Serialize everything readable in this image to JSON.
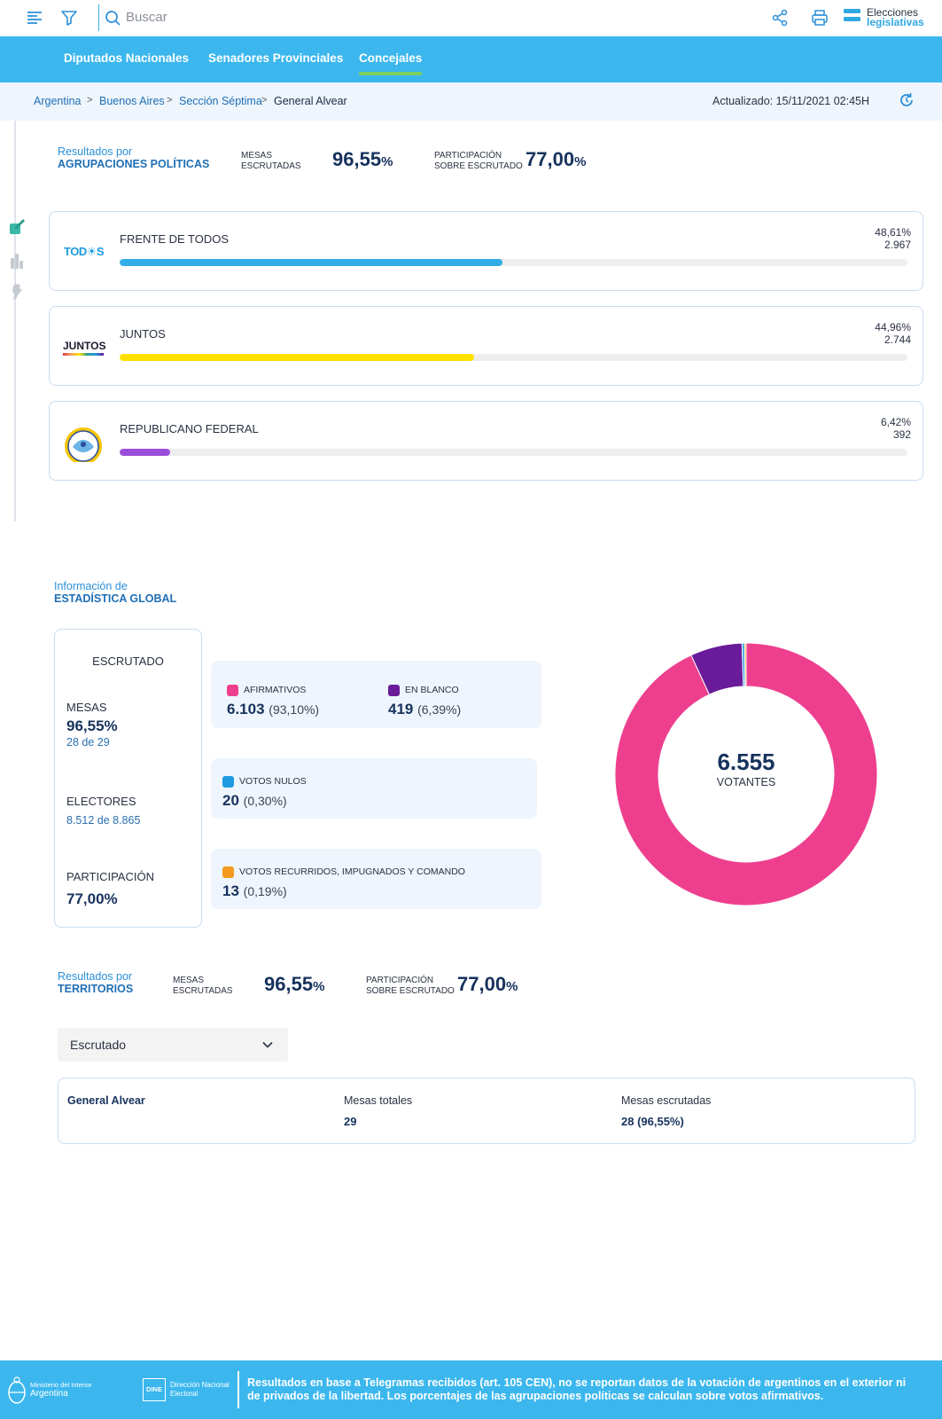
{
  "header": {
    "search_placeholder": "Buscar",
    "brand_line1": "Elecciones",
    "brand_line2": "legislativas",
    "accent": "#3bb7ee"
  },
  "nav": {
    "tabs": [
      "Diputados Nacionales",
      "Senadores Provinciales",
      "Concejales"
    ],
    "active": "Concejales"
  },
  "breadcrumb": {
    "items": [
      "Argentina",
      "Buenos Aires",
      "Sección Séptima",
      "General Alvear"
    ],
    "updated": "Actualizado: 15/11/2021 02:45H"
  },
  "agrupaciones": {
    "title_small": "Resultados por",
    "title_bold": "AGRUPACIONES POLÍTICAS",
    "mesas_label_1": "MESAS",
    "mesas_label_2": "ESCRUTADAS",
    "mesas_value": "96,55",
    "part_label_1": "PARTICIPACIÓN",
    "part_label_2": "SOBRE ESCRUTADO",
    "part_value": "77,00",
    "pct_sign": "%",
    "parties": [
      {
        "name": "FRENTE DE TODOS",
        "pct": "48,61%",
        "votes": "2.967",
        "share": 48.61,
        "color": "#33ade8",
        "logo": "TOD☀S"
      },
      {
        "name": "JUNTOS",
        "pct": "44,96%",
        "votes": "2.744",
        "share": 44.96,
        "color": "#ffe100",
        "logo": "JUNTOS"
      },
      {
        "name": "REPUBLICANO FEDERAL",
        "pct": "6,42%",
        "votes": "392",
        "share": 6.42,
        "color": "#9b4fd8",
        "logo": ""
      }
    ]
  },
  "estadistica": {
    "title_small": "Información de",
    "title_bold": "ESTADÍSTICA GLOBAL",
    "escrutado": {
      "title": "ESCRUTADO",
      "mesas_label": "MESAS",
      "mesas_value": "96,55%",
      "mesas_sub": "28 de 29",
      "electores_label": "ELECTORES",
      "electores_sub": "8.512 de 8.865",
      "participacion_label": "PARTICIPACIÓN",
      "participacion_value": "77,00%"
    },
    "votos": [
      {
        "label": "AFIRMATIVOS",
        "count": "6.103",
        "pct": "(93,10%)",
        "value": 6103,
        "color": "#ee3f8f"
      },
      {
        "label": "EN BLANCO",
        "count": "419",
        "pct": "(6,39%)",
        "value": 419,
        "color": "#6a1b9a"
      },
      {
        "label": "VOTOS NULOS",
        "count": "20",
        "pct": "(0,30%)",
        "value": 20,
        "color": "#1e9be0"
      },
      {
        "label": "VOTOS RECURRIDOS, IMPUGNADOS Y COMANDO",
        "count": "13",
        "pct": "(0,19%)",
        "value": 13,
        "color": "#f39a1f"
      }
    ],
    "total": "6.555",
    "total_label": "VOTANTES"
  },
  "territorios": {
    "title_small": "Resultados por",
    "title_bold": "TERRITORIOS",
    "mesas_label_1": "MESAS",
    "mesas_label_2": "ESCRUTADAS",
    "mesas_value": "96,55",
    "part_label_1": "PARTICIPACIÓN",
    "part_label_2": "SOBRE ESCRUTADO",
    "part_value": "77,00",
    "pct_sign": "%",
    "select_value": "Escrutado",
    "row": {
      "name": "General Alvear",
      "col2_label": "Mesas totales",
      "col2_value": "29",
      "col3_label": "Mesas escrutadas",
      "col3_value": "28 (96,55%)"
    }
  },
  "footer": {
    "ministerio_1": "Ministerio del Interior",
    "ministerio_2": "Argentina",
    "dine_box": "DINE",
    "dine_1": "Dirección Nacional",
    "dine_2": "Electoral",
    "note": "Resultados en base a Telegramas recibidos (art. 105 CEN), no se reportan datos de la votación de argentinos en el exterior ni de privados de la libertad. Los porcentajes de las agrupaciones políticas se calculan sobre votos afirmativos."
  }
}
